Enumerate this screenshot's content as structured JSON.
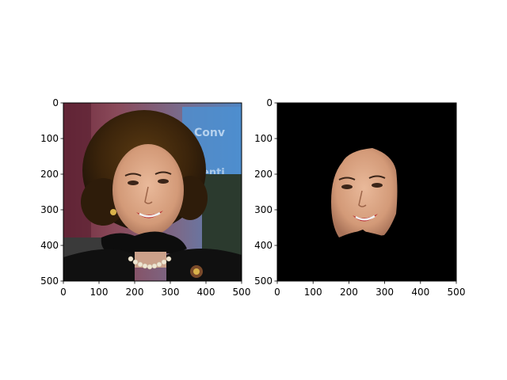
{
  "figure": {
    "background": "#ffffff"
  },
  "chart_data": [
    {
      "type": "image",
      "content": "photo of a smiling woman with dark brown bouffant hair, red lipstick and a pearl necklace; a dark blob is drawn over the lower face/neck area; blue and purple blurred banner in background",
      "xlim": [
        0,
        500
      ],
      "ylim": [
        500,
        0
      ],
      "xticks": [
        0,
        100,
        200,
        300,
        400,
        500
      ],
      "yticks": [
        0,
        100,
        200,
        300,
        400,
        500
      ],
      "xlabel": "",
      "ylabel": "",
      "title": ""
    },
    {
      "type": "image",
      "content": "segmented face-only crop of the same photo on a black background; everything except the face region is black",
      "xlim": [
        0,
        500
      ],
      "ylim": [
        500,
        0
      ],
      "xticks": [
        0,
        100,
        200,
        300,
        400,
        500
      ],
      "yticks": [
        0,
        100,
        200,
        300,
        400,
        500
      ],
      "xlabel": "",
      "ylabel": "",
      "title": ""
    }
  ]
}
